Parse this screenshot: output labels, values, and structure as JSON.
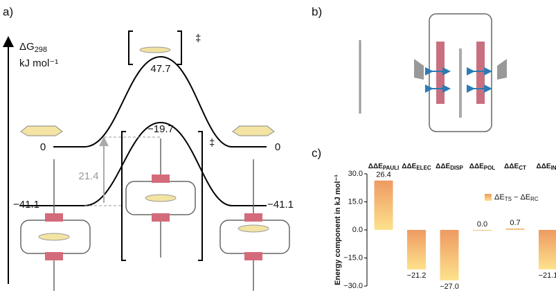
{
  "panel_labels": [
    "a)",
    "b)",
    "c)"
  ],
  "energy_diagram": {
    "axis_label": "ΔG",
    "axis_label_subscript": "298",
    "axis_unit": "kJ mol⁻¹",
    "upper_left": "0",
    "upper_ts": "47.7",
    "upper_right": "0",
    "lower_left": "−41.1",
    "lower_ts": "−19.7",
    "lower_right": "−41.1",
    "barrier": "21.4",
    "ts_marks": [
      "‡",
      "‡"
    ]
  },
  "chart_data": {
    "type": "bar",
    "y_label": "Energy component in kJ mol⁻¹",
    "categories": [
      "ΔΔEPAULI",
      "ΔΔEELEC",
      "ΔΔEDISP",
      "ΔΔEPOL",
      "ΔΔECT",
      "ΔΔEINT"
    ],
    "series": [
      {
        "name": "ΔETS − ΔERC",
        "color": "#ee9a62",
        "values": [
          26.4,
          -21.2,
          -27.0,
          0.0,
          0.7,
          -21.1
        ],
        "value_labels": [
          "26.4",
          "−21.2",
          "−27.0",
          "0.0",
          "0.7",
          "−21.1"
        ]
      }
    ],
    "ylim": [
      -30,
      30
    ],
    "yticks": [
      {
        "value": 30,
        "label": "30.0"
      },
      {
        "value": 15,
        "label": "15.0"
      },
      {
        "value": 0,
        "label": "0.0"
      },
      {
        "value": -15,
        "label": "−15.0"
      },
      {
        "value": -30,
        "label": "−30.0"
      }
    ],
    "grid": false
  }
}
